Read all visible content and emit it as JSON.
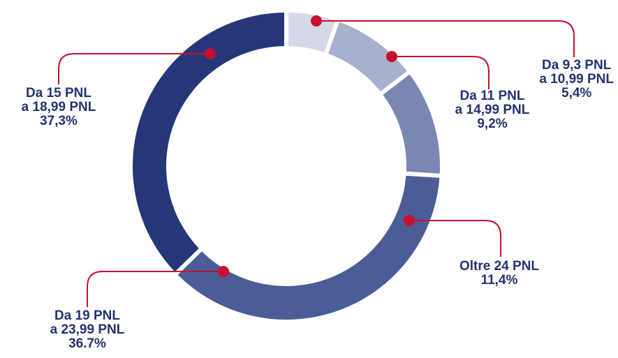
{
  "chart_data": {
    "type": "donut",
    "title": "",
    "slices": [
      {
        "label_lines": [
          "Da 9,3 PNL",
          "a 10,99 PNL"
        ],
        "value_text": "5,4%",
        "value": 5.4,
        "color": "#d4d8e8"
      },
      {
        "label_lines": [
          "Da 11 PNL",
          "a 14,99 PNL"
        ],
        "value_text": "9,2%",
        "value": 9.2,
        "color": "#a7b0cd"
      },
      {
        "label_lines": [
          "Oltre 24 PNL"
        ],
        "value_text": "11,4%",
        "value": 11.4,
        "color": "#7a87b3"
      },
      {
        "label_lines": [
          "Da 19 PNL",
          "a 23,99 PNL"
        ],
        "value_text": "36.7%",
        "value": 36.7,
        "color": "#4c5c96"
      },
      {
        "label_lines": [
          "Da 15 PNL",
          "a 18,99 PNL"
        ],
        "value_text": "37,3%",
        "value": 37.3,
        "color": "#253778"
      }
    ],
    "label_color": "#23336f",
    "leader_color": "#c8102e"
  }
}
